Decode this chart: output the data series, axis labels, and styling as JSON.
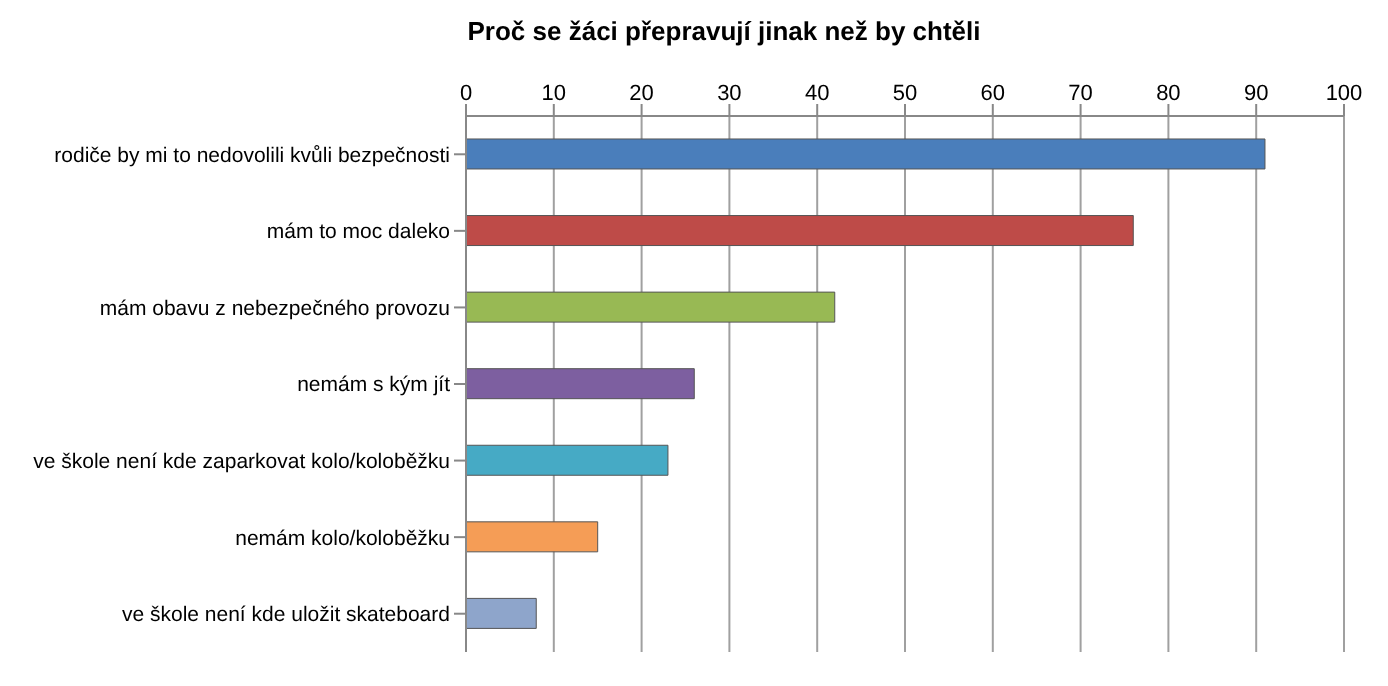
{
  "chart_data": {
    "type": "bar",
    "orientation": "horizontal",
    "title": "Proč se žáci přepravují jinak než by chtěli",
    "categories": [
      "rodiče by mi to nedovolili kvůli bezpečnosti",
      "mám to moc daleko",
      "mám obavu z nebezpečného provozu",
      "nemám s kým jít",
      "ve škole není kde zaparkovat kolo/koloběžku",
      "nemám kolo/koloběžku",
      "ve škole není kde uložit skateboard"
    ],
    "values": [
      91,
      76,
      42,
      26,
      23,
      15,
      8
    ],
    "colors": [
      "#4a7ebb",
      "#be4b48",
      "#98b954",
      "#7d5fa0",
      "#46aac5",
      "#f59d56",
      "#8ea5cb"
    ],
    "xlim": [
      0,
      100
    ],
    "xticks": [
      0,
      10,
      20,
      30,
      40,
      50,
      60,
      70,
      80,
      90,
      100
    ],
    "grid": "x"
  }
}
